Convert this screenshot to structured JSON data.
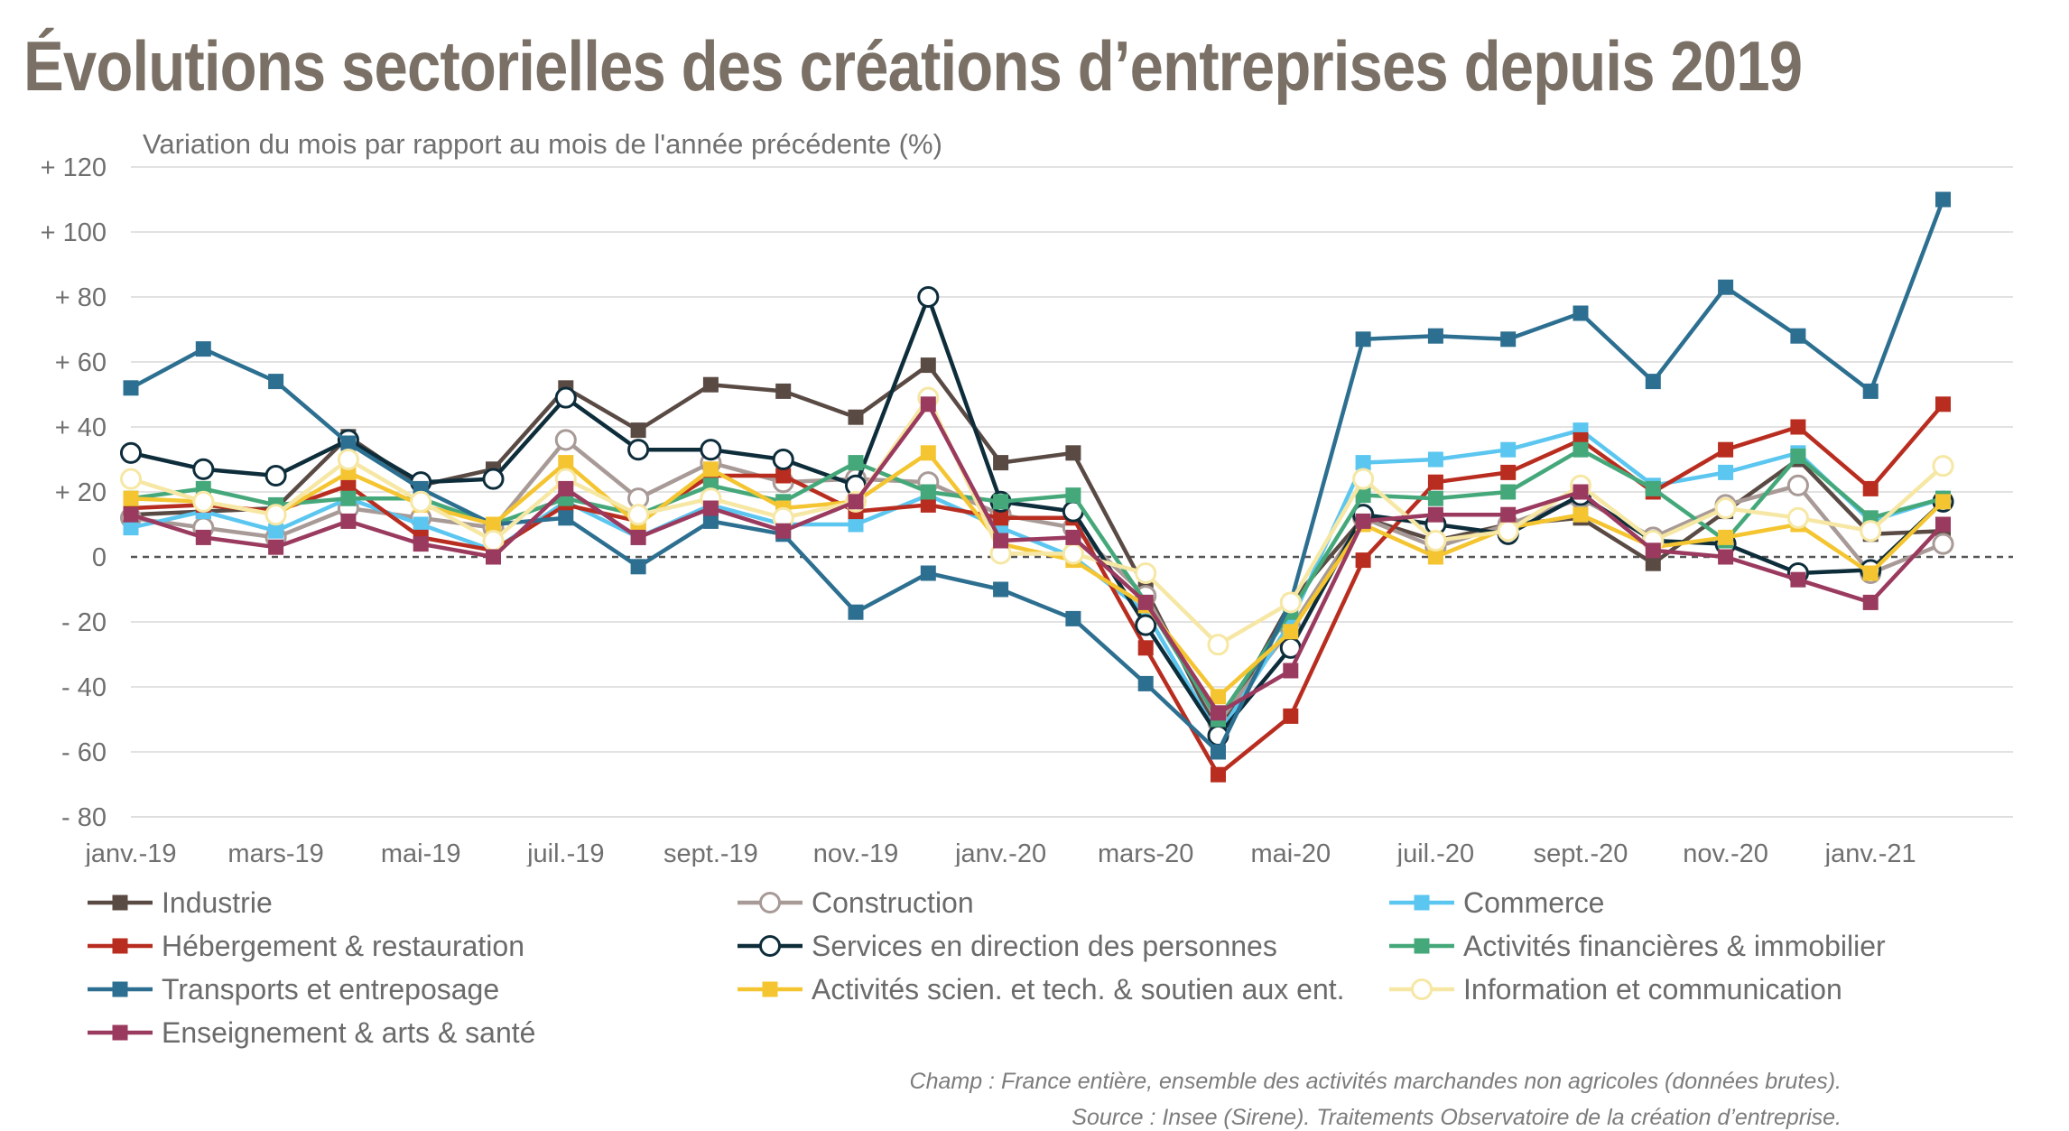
{
  "title": "Évolutions sectorielles des créations d’entreprises depuis 2019",
  "footnote": {
    "champ": "Champ : France entière, ensemble des activités marchandes non agricoles (données brutes).",
    "source": "Source : Insee (Sirene). Traitements Observatoire de la création d’entreprise."
  },
  "chart_data": {
    "type": "line",
    "subtitle": "Variation du mois par rapport au mois de l'année précédente (%)",
    "ylim": [
      -80,
      120
    ],
    "yticks": [
      120,
      100,
      80,
      60,
      40,
      20,
      0,
      -20,
      -40,
      -60,
      -80
    ],
    "ytick_labels": [
      "+ 120",
      "+ 100",
      "+ 80",
      "+ 60",
      "+ 40",
      "+ 20",
      "0",
      "- 20",
      "- 40",
      "- 60",
      "- 80"
    ],
    "x": [
      "janv.-19",
      "févr.-19",
      "mars-19",
      "avr.-19",
      "mai-19",
      "juin-19",
      "juil.-19",
      "août-19",
      "sept.-19",
      "oct.-19",
      "nov.-19",
      "déc.-19",
      "janv.-20",
      "févr.-20",
      "mars-20",
      "avr.-20",
      "mai-20",
      "juin-20",
      "juil.-20",
      "août-20",
      "sept.-20",
      "oct.-20",
      "nov.-20",
      "déc.-20",
      "janv.-21",
      "févr.-21"
    ],
    "xtick_labels": [
      "janv.-19",
      "mars-19",
      "mai-19",
      "juil.-19",
      "sept.-19",
      "nov.-19",
      "janv.-20",
      "mars-20",
      "mai-20",
      "juil.-20",
      "sept.-20",
      "nov.-20",
      "janv.-21"
    ],
    "grid": "horizontal",
    "legend_position": "bottom",
    "series": [
      {
        "name": "Industrie",
        "color": "#5a4a44",
        "marker": "square",
        "values": [
          13,
          14,
          15,
          37,
          22,
          27,
          52,
          39,
          53,
          51,
          43,
          59,
          29,
          32,
          -10,
          -54,
          -14,
          12,
          5,
          10,
          12,
          -2,
          14,
          30,
          7,
          8
        ]
      },
      {
        "name": "Construction",
        "color": "#a89a96",
        "marker": "circle-open",
        "values": [
          12,
          9,
          6,
          15,
          12,
          9,
          36,
          18,
          29,
          23,
          24,
          23,
          13,
          9,
          -12,
          -51,
          -22,
          12,
          3,
          10,
          18,
          6,
          16,
          22,
          -5,
          4
        ]
      },
      {
        "name": "Commerce",
        "color": "#5bc6f0",
        "marker": "square",
        "values": [
          9,
          14,
          8,
          18,
          10,
          2,
          17,
          6,
          16,
          10,
          10,
          19,
          9,
          0,
          -17,
          -55,
          -20,
          29,
          30,
          33,
          39,
          22,
          26,
          32,
          11,
          18
        ]
      },
      {
        "name": "Hébergement & restauration",
        "color": "#b82d1f",
        "marker": "square",
        "values": [
          15,
          16,
          14,
          22,
          6,
          2,
          16,
          11,
          25,
          25,
          14,
          16,
          12,
          12,
          -28,
          -67,
          -49,
          -1,
          23,
          26,
          36,
          20,
          33,
          40,
          21,
          47
        ]
      },
      {
        "name": "Services en direction des personnes",
        "color": "#0e2d3b",
        "marker": "circle-open",
        "values": [
          32,
          27,
          25,
          36,
          23,
          24,
          49,
          33,
          33,
          30,
          22,
          80,
          17,
          14,
          -21,
          -55,
          -28,
          13,
          10,
          7,
          19,
          5,
          4,
          -5,
          -4,
          17
        ]
      },
      {
        "name": "Activités financières & immobilier",
        "color": "#45a87a",
        "marker": "square",
        "values": [
          18,
          21,
          16,
          18,
          18,
          10,
          18,
          13,
          22,
          17,
          29,
          20,
          17,
          19,
          -14,
          -50,
          -17,
          19,
          18,
          20,
          33,
          21,
          5,
          31,
          12,
          18
        ]
      },
      {
        "name": "Transports et entreposage",
        "color": "#2c6f90",
        "marker": "square",
        "values": [
          52,
          64,
          54,
          35,
          21,
          10,
          12,
          -3,
          11,
          7,
          -17,
          -5,
          -10,
          -19,
          -39,
          -60,
          -14,
          67,
          68,
          67,
          75,
          54,
          83,
          68,
          51,
          110
        ]
      },
      {
        "name": "Activités scien. et tech. & soutien aux ent.",
        "color": "#f4c531",
        "marker": "square",
        "values": [
          18,
          17,
          13,
          26,
          16,
          10,
          29,
          10,
          27,
          15,
          17,
          32,
          4,
          -1,
          -15,
          -43,
          -23,
          10,
          0,
          9,
          13,
          3,
          6,
          10,
          -5,
          17
        ]
      },
      {
        "name": "Information et communication",
        "color": "#f6e7a4",
        "marker": "circle-open",
        "values": [
          24,
          17,
          13,
          30,
          17,
          5,
          24,
          13,
          18,
          12,
          17,
          49,
          1,
          1,
          -5,
          -27,
          -14,
          24,
          5,
          8,
          22,
          5,
          15,
          12,
          8,
          28
        ]
      },
      {
        "name": "Enseignement & arts & santé",
        "color": "#9a3a5e",
        "marker": "square",
        "values": [
          13,
          6,
          3,
          11,
          4,
          0,
          21,
          6,
          15,
          8,
          17,
          47,
          5,
          6,
          -14,
          -48,
          -35,
          11,
          13,
          13,
          20,
          2,
          0,
          -7,
          -14,
          10
        ]
      }
    ]
  }
}
